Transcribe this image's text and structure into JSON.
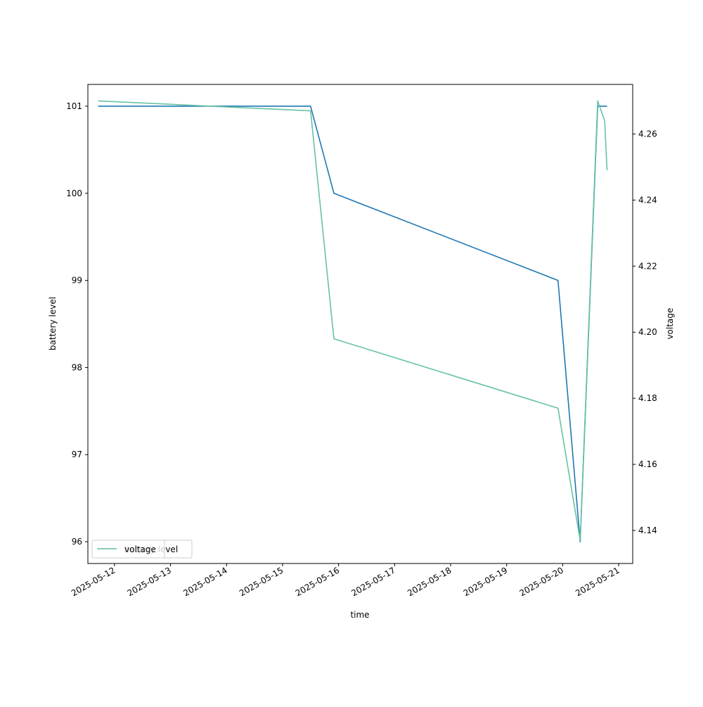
{
  "chart_data": {
    "type": "line",
    "xlabel": "time",
    "ylabel_left": "battery level",
    "ylabel_right": "voltage",
    "x_ticks": [
      "2025-05-12",
      "2025-05-13",
      "2025-05-14",
      "2025-05-15",
      "2025-05-16",
      "2025-05-17",
      "2025-05-18",
      "2025-05-19",
      "2025-05-20",
      "2025-05-21"
    ],
    "y_left_ticks": [
      96,
      97,
      98,
      99,
      100,
      101
    ],
    "y_right_ticks": [
      "4.14",
      "4.16",
      "4.18",
      "4.20",
      "4.22",
      "4.24",
      "4.26"
    ],
    "x_range": [
      "2025-05-11 12:36",
      "2025-05-21 06:00"
    ],
    "ylim_left": [
      95.75,
      101.25
    ],
    "ylim_right": [
      4.13,
      4.275
    ],
    "grid": false,
    "series": [
      {
        "name": "battery level",
        "axis": "left",
        "color": "#1f77b4",
        "points": [
          {
            "x": "2025-05-11 17:00",
            "y": 101
          },
          {
            "x": "2025-05-15 12:00",
            "y": 101
          },
          {
            "x": "2025-05-15 22:00",
            "y": 100
          },
          {
            "x": "2025-05-19 22:00",
            "y": 99
          },
          {
            "x": "2025-05-20 07:30",
            "y": 96
          },
          {
            "x": "2025-05-20 15:00",
            "y": 101
          },
          {
            "x": "2025-05-20 19:00",
            "y": 101
          }
        ]
      },
      {
        "name": "voltage",
        "axis": "right",
        "color": "#66c2a5",
        "points": [
          {
            "x": "2025-05-11 17:00",
            "y": 4.27
          },
          {
            "x": "2025-05-15 12:00",
            "y": 4.267
          },
          {
            "x": "2025-05-15 22:00",
            "y": 4.198
          },
          {
            "x": "2025-05-19 22:00",
            "y": 4.177
          },
          {
            "x": "2025-05-20 07:30",
            "y": 4.137
          },
          {
            "x": "2025-05-20 15:00",
            "y": 4.27
          },
          {
            "x": "2025-05-20 18:00",
            "y": 4.264
          },
          {
            "x": "2025-05-20 19:00",
            "y": 4.249
          }
        ]
      }
    ],
    "legends": [
      {
        "placement": "lower left",
        "entries": [
          {
            "label": "battery level",
            "color": "#1f77b4"
          }
        ]
      },
      {
        "placement": "lower left",
        "entries": [
          {
            "label": "voltage",
            "color": "#66c2a5"
          }
        ]
      }
    ]
  }
}
